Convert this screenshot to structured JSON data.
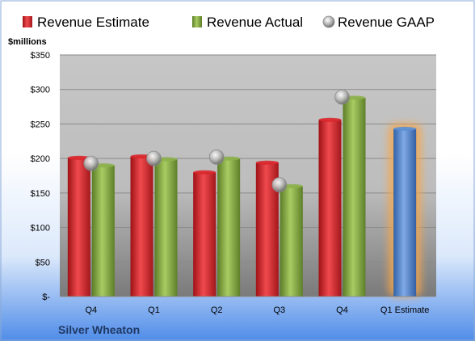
{
  "chart_data": {
    "type": "bar",
    "title": "",
    "unit_label": "$millions",
    "company": "Silver Wheaton",
    "categories": [
      "Q4",
      "Q1",
      "Q2",
      "Q3",
      "Q4",
      "Q1 Estimate"
    ],
    "ylim": [
      0,
      350
    ],
    "yticks": [
      0,
      50,
      100,
      150,
      200,
      250,
      300,
      350
    ],
    "ytick_labels": [
      "$-",
      "$50",
      "$100",
      "$150",
      "$200",
      "$250",
      "$300",
      "$350"
    ],
    "grid": true,
    "legend_position": "top",
    "series": [
      {
        "name": "Revenue Estimate",
        "kind": "bar",
        "color": "#d9262b",
        "values": [
          201,
          203,
          180,
          194,
          256,
          null
        ]
      },
      {
        "name": "Revenue Actual",
        "kind": "bar",
        "color": "#8cb04a",
        "values": [
          190,
          199,
          200,
          160,
          288,
          null
        ]
      },
      {
        "name": "Revenue GAAP",
        "kind": "marker",
        "color": "#b0b0b0",
        "values": [
          193,
          200,
          202,
          162,
          289,
          null
        ]
      },
      {
        "name": "",
        "kind": "bar",
        "color": "#5b8fd4",
        "values": [
          null,
          null,
          null,
          null,
          null,
          243
        ],
        "highlight": true
      }
    ]
  }
}
